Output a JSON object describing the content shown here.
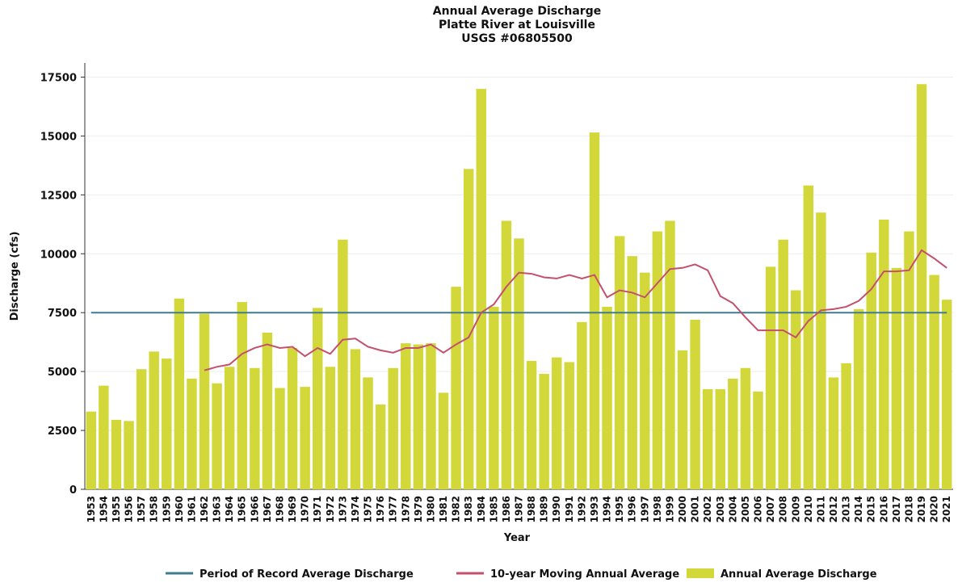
{
  "chart_data": {
    "type": "bar",
    "title": [
      "Annual Average Discharge",
      "Platte River at Louisville",
      "USGS #06805500"
    ],
    "x_label": "Year",
    "y_label": "Discharge (cfs)",
    "categories": [
      "1953",
      "1954",
      "1955",
      "1956",
      "1957",
      "1958",
      "1959",
      "1960",
      "1961",
      "1962",
      "1963",
      "1964",
      "1965",
      "1966",
      "1967",
      "1968",
      "1969",
      "1970",
      "1971",
      "1972",
      "1973",
      "1974",
      "1975",
      "1976",
      "1977",
      "1978",
      "1979",
      "1980",
      "1981",
      "1982",
      "1983",
      "1984",
      "1985",
      "1986",
      "1987",
      "1988",
      "1989",
      "1990",
      "1991",
      "1992",
      "1993",
      "1994",
      "1995",
      "1996",
      "1997",
      "1998",
      "1999",
      "2000",
      "2001",
      "2002",
      "2003",
      "2004",
      "2005",
      "2006",
      "2007",
      "2008",
      "2009",
      "2010",
      "2011",
      "2012",
      "2013",
      "2014",
      "2015",
      "2016",
      "2017",
      "2018",
      "2019",
      "2020",
      "2021"
    ],
    "series": [
      {
        "name": "Period of Record Average Discharge",
        "color": "#3f7d8c",
        "value": 7500
      },
      {
        "name": "10-year Moving Annual Average",
        "color": "#c4506c",
        "values": [
          null,
          null,
          null,
          null,
          null,
          null,
          null,
          null,
          null,
          5050,
          5200,
          5300,
          5750,
          6000,
          6150,
          6000,
          6050,
          5650,
          6000,
          5750,
          6350,
          6400,
          6050,
          5900,
          5800,
          6000,
          6000,
          6150,
          5800,
          6150,
          6450,
          7500,
          7850,
          8600,
          9200,
          9150,
          9000,
          8950,
          9100,
          8950,
          9100,
          8150,
          8450,
          8350,
          8150,
          8750,
          9350,
          9400,
          9550,
          9300,
          8200,
          7900,
          7300,
          6750,
          6750,
          6750,
          6450,
          7150,
          7600,
          7650,
          7750,
          8000,
          8500,
          9250,
          9250,
          9300,
          10150,
          9800,
          9400
        ]
      },
      {
        "name": "Annual Average Discharge",
        "color": "#d3d83a",
        "values": [
          3300,
          4400,
          2950,
          2900,
          5100,
          5850,
          5550,
          8100,
          4700,
          7450,
          4500,
          5200,
          7950,
          5150,
          6650,
          4300,
          6000,
          4350,
          7700,
          5200,
          10600,
          5950,
          4750,
          3600,
          5150,
          6200,
          6150,
          6200,
          4100,
          8600,
          13600,
          17000,
          7750,
          11400,
          10650,
          5450,
          4900,
          5600,
          5400,
          7100,
          15150,
          7750,
          10750,
          9900,
          9200,
          10950,
          11400,
          5900,
          7200,
          4250,
          4250,
          4700,
          5150,
          4150,
          9450,
          10600,
          8450,
          12900,
          11750,
          4750,
          5350,
          7650,
          10050,
          11450,
          9400,
          10950,
          17200,
          9100,
          8050
        ]
      }
    ],
    "ylim": [
      0,
      18100
    ],
    "yticks": [
      0,
      2500,
      5000,
      7500,
      10000,
      12500,
      15000,
      17500
    ],
    "grid": true,
    "legend": "bottom"
  }
}
